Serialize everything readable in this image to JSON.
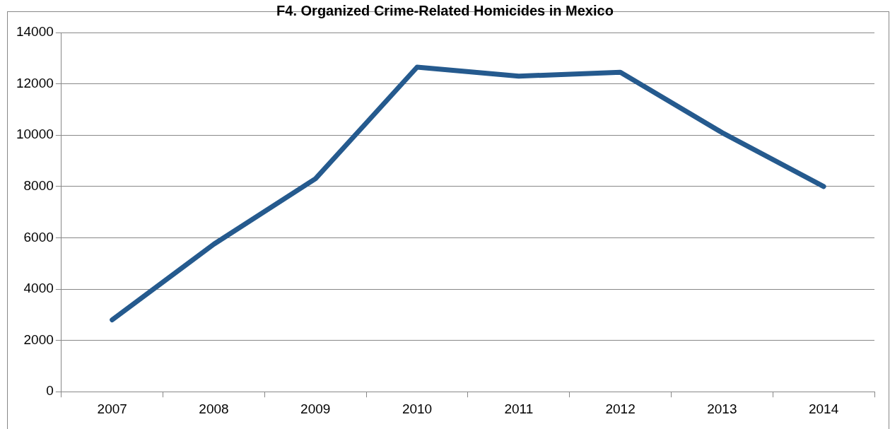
{
  "chart_data": {
    "type": "line",
    "title": "F4. Organized Crime-Related Homicides in Mexico",
    "categories": [
      "2007",
      "2008",
      "2009",
      "2010",
      "2011",
      "2012",
      "2013",
      "2014"
    ],
    "series": [
      {
        "color": "#255a8e",
        "values": [
          2800,
          5750,
          8300,
          12650,
          12300,
          12450,
          10100,
          8000
        ]
      }
    ],
    "ylim": [
      0,
      14000
    ],
    "yticks": [
      0,
      2000,
      4000,
      6000,
      8000,
      10000,
      12000,
      14000
    ],
    "grid": "y",
    "legend": false,
    "marker": "none",
    "line_style": "solid"
  }
}
